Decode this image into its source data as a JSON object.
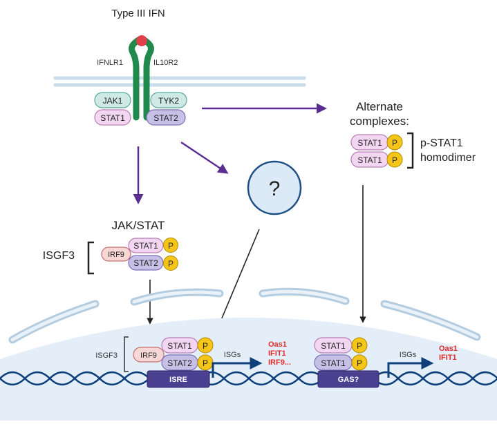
{
  "title": "Type III IFN",
  "receptors": {
    "left": "IFNLR1",
    "right": "IL10R2"
  },
  "kinases": {
    "left": "JAK1",
    "right": "TYK2"
  },
  "receptor_stats": {
    "left": "STAT1",
    "right": "STAT2"
  },
  "pathway_label": "JAK/STAT",
  "unknown_symbol": "?",
  "alternate": {
    "title_line1": "Alternate",
    "title_line2": "complexes:",
    "stat_top": "STAT1",
    "stat_bottom": "STAT1",
    "label_line1": "p-STAT1",
    "label_line2": "homodimer"
  },
  "isgf3": {
    "label": "ISGF3",
    "irf": "IRF9",
    "stat_top": "STAT1",
    "stat_bottom": "STAT2",
    "phospho": "P"
  },
  "nucleus": {
    "isgf3_label": "ISGF3",
    "irf": "IRF9",
    "stat_top": "STAT1",
    "stat_bottom": "STAT2",
    "left_element": "ISRE",
    "right_element": "GAS?",
    "right_stat_top": "STAT1",
    "right_stat_bottom": "STAT1",
    "isgs_left": "ISGs",
    "isgs_right": "ISGs",
    "genes_left": [
      "Oas1",
      "IFIT1",
      "IRF9..."
    ],
    "genes_right": [
      "Oas1",
      "IFIT1"
    ]
  },
  "colors": {
    "membrane": "#c9dcea",
    "receptor": "#1f8a4c",
    "ligand": "#e0404a",
    "jak": "#cfe9e4",
    "stat1": "#f3d6f1",
    "stat2": "#c7c0e6",
    "irf": "#f8d7d7",
    "phospho": "#f5c518",
    "arrow_purple": "#5a2d91",
    "dna": "#0d3f7a",
    "gene_text": "#e02b2b",
    "element_box": "#4b3f8f"
  }
}
